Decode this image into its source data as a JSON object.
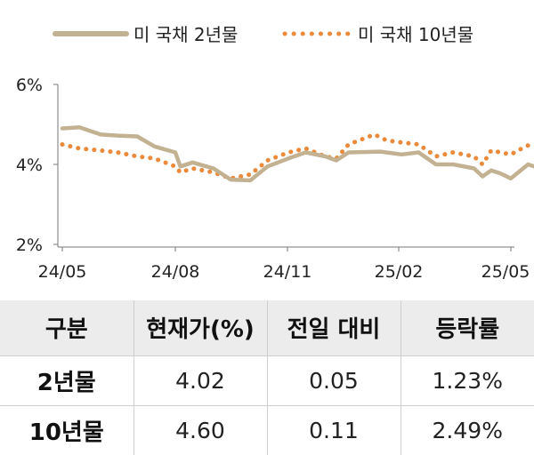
{
  "chart_data": {
    "type": "line",
    "title": "",
    "xlabel": "",
    "ylabel": "",
    "x_ticks": [
      "24/05",
      "24/08",
      "24/11",
      "25/02",
      "25/05"
    ],
    "y_ticks": [
      "2%",
      "4%",
      "6%"
    ],
    "ylim": [
      2,
      6
    ],
    "xlim_months": [
      "2024-05",
      "2025-05"
    ],
    "grid": false,
    "legend_position": "top",
    "series": [
      {
        "name": "미 국채 2년물",
        "style": "solid",
        "color": "#c2b292",
        "points": [
          [
            "2024-05-01",
            4.9
          ],
          [
            "2024-05-15",
            4.93
          ],
          [
            "2024-06-01",
            4.75
          ],
          [
            "2024-06-15",
            4.72
          ],
          [
            "2024-07-01",
            4.7
          ],
          [
            "2024-07-15",
            4.45
          ],
          [
            "2024-08-01",
            4.3
          ],
          [
            "2024-08-05",
            3.95
          ],
          [
            "2024-08-15",
            4.05
          ],
          [
            "2024-09-01",
            3.9
          ],
          [
            "2024-09-15",
            3.62
          ],
          [
            "2024-10-01",
            3.6
          ],
          [
            "2024-10-15",
            3.95
          ],
          [
            "2024-11-01",
            4.15
          ],
          [
            "2024-11-15",
            4.3
          ],
          [
            "2024-12-01",
            4.2
          ],
          [
            "2024-12-10",
            4.1
          ],
          [
            "2024-12-20",
            4.3
          ],
          [
            "2025-01-15",
            4.32
          ],
          [
            "2025-02-01",
            4.25
          ],
          [
            "2025-02-15",
            4.3
          ],
          [
            "2025-03-01",
            4.0
          ],
          [
            "2025-03-15",
            4.0
          ],
          [
            "2025-04-01",
            3.9
          ],
          [
            "2025-04-08",
            3.7
          ],
          [
            "2025-04-15",
            3.85
          ],
          [
            "2025-04-22",
            3.78
          ],
          [
            "2025-05-01",
            3.65
          ],
          [
            "2025-05-15",
            4.0
          ],
          [
            "2025-05-20",
            3.95
          ]
        ]
      },
      {
        "name": "미 국채 10년물",
        "style": "dotted",
        "color": "#ea8a3a",
        "points": [
          [
            "2024-05-01",
            4.5
          ],
          [
            "2024-05-15",
            4.4
          ],
          [
            "2024-06-01",
            4.35
          ],
          [
            "2024-06-15",
            4.3
          ],
          [
            "2024-07-01",
            4.2
          ],
          [
            "2024-07-15",
            4.15
          ],
          [
            "2024-08-01",
            3.95
          ],
          [
            "2024-08-05",
            3.8
          ],
          [
            "2024-08-15",
            3.9
          ],
          [
            "2024-09-01",
            3.8
          ],
          [
            "2024-09-15",
            3.65
          ],
          [
            "2024-10-01",
            3.75
          ],
          [
            "2024-10-15",
            4.1
          ],
          [
            "2024-11-01",
            4.3
          ],
          [
            "2024-11-15",
            4.4
          ],
          [
            "2024-12-01",
            4.2
          ],
          [
            "2024-12-10",
            4.15
          ],
          [
            "2024-12-20",
            4.5
          ],
          [
            "2025-01-10",
            4.75
          ],
          [
            "2025-01-20",
            4.6
          ],
          [
            "2025-02-01",
            4.55
          ],
          [
            "2025-02-15",
            4.5
          ],
          [
            "2025-03-01",
            4.2
          ],
          [
            "2025-03-15",
            4.3
          ],
          [
            "2025-04-01",
            4.2
          ],
          [
            "2025-04-08",
            4.0
          ],
          [
            "2025-04-15",
            4.35
          ],
          [
            "2025-05-01",
            4.25
          ],
          [
            "2025-05-10",
            4.4
          ],
          [
            "2025-05-20",
            4.55
          ]
        ]
      }
    ]
  },
  "table": {
    "headers": [
      "구분",
      "현재가(%)",
      "전일 대비",
      "등락률"
    ],
    "rows": [
      [
        "2년물",
        "4.02",
        "0.05",
        "1.23%"
      ],
      [
        "10년물",
        "4.60",
        "0.11",
        "2.49%"
      ]
    ]
  }
}
